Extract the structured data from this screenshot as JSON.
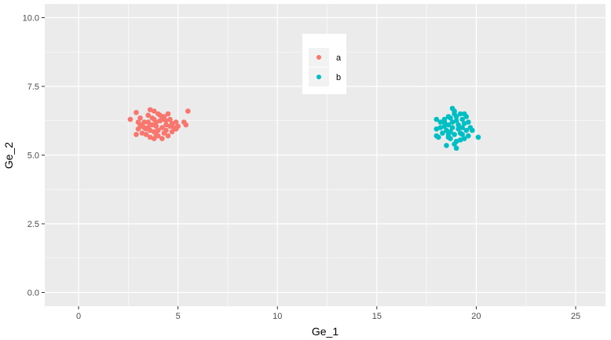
{
  "chart_data": {
    "type": "scatter",
    "title": "",
    "xlabel": "Ge_1",
    "ylabel": "Ge_2",
    "xlim": [
      -1.7,
      26.5
    ],
    "ylim": [
      -0.5,
      10.5
    ],
    "xticks": [
      0,
      5,
      10,
      15,
      20,
      25
    ],
    "xtick_labels": [
      "0",
      "5",
      "10",
      "15",
      "20",
      "25"
    ],
    "yticks": [
      0.0,
      2.5,
      5.0,
      7.5,
      10.0
    ],
    "ytick_labels": [
      "0.0",
      "2.5",
      "5.0",
      "7.5",
      "10.0"
    ],
    "grid": true,
    "legend_position": "top-center, inside plot",
    "colors": {
      "a": "#F8766D",
      "b": "#00BFC4",
      "panel": "#EBEBEB",
      "grid": "#FFFFFF"
    },
    "series": [
      {
        "name": "a",
        "color": "#F8766D",
        "points": [
          [
            2.9,
            6.55
          ],
          [
            3.6,
            6.65
          ],
          [
            3.8,
            6.6
          ],
          [
            3.1,
            6.35
          ],
          [
            2.6,
            6.3
          ],
          [
            3.3,
            6.2
          ],
          [
            3.5,
            6.45
          ],
          [
            4.0,
            6.5
          ],
          [
            4.3,
            6.4
          ],
          [
            4.6,
            6.3
          ],
          [
            5.5,
            6.6
          ],
          [
            5.3,
            6.2
          ],
          [
            5.4,
            6.1
          ],
          [
            4.9,
            6.2
          ],
          [
            5.0,
            6.05
          ],
          [
            4.8,
            6.0
          ],
          [
            4.7,
            5.85
          ],
          [
            4.5,
            5.7
          ],
          [
            4.2,
            5.6
          ],
          [
            3.8,
            5.6
          ],
          [
            3.6,
            5.65
          ],
          [
            3.4,
            5.75
          ],
          [
            3.2,
            5.8
          ],
          [
            2.9,
            5.75
          ],
          [
            3.0,
            5.95
          ],
          [
            3.1,
            6.1
          ],
          [
            3.3,
            6.0
          ],
          [
            3.5,
            6.0
          ],
          [
            3.7,
            6.1
          ],
          [
            3.9,
            6.2
          ],
          [
            4.1,
            6.25
          ],
          [
            4.4,
            6.1
          ],
          [
            4.2,
            6.0
          ],
          [
            4.0,
            5.9
          ],
          [
            3.8,
            5.85
          ],
          [
            3.6,
            5.9
          ],
          [
            3.4,
            5.95
          ],
          [
            3.7,
            6.35
          ],
          [
            4.1,
            6.45
          ],
          [
            4.4,
            6.25
          ],
          [
            4.6,
            6.05
          ],
          [
            4.3,
            5.8
          ],
          [
            4.0,
            5.7
          ],
          [
            3.9,
            6.05
          ],
          [
            3.5,
            6.2
          ],
          [
            4.5,
            6.5
          ],
          [
            3.2,
            6.05
          ],
          [
            3.9,
            5.75
          ],
          [
            4.2,
            6.3
          ],
          [
            4.7,
            6.15
          ],
          [
            3.0,
            6.2
          ],
          [
            4.4,
            5.9
          ],
          [
            3.6,
            6.1
          ],
          [
            3.8,
            6.3
          ],
          [
            4.9,
            5.95
          ]
        ]
      },
      {
        "name": "b",
        "color": "#00BFC4",
        "points": [
          [
            18.8,
            6.7
          ],
          [
            18.9,
            6.6
          ],
          [
            19.2,
            6.5
          ],
          [
            19.4,
            6.5
          ],
          [
            18.6,
            6.4
          ],
          [
            18.0,
            6.3
          ],
          [
            18.4,
            6.3
          ],
          [
            18.7,
            6.35
          ],
          [
            19.0,
            6.4
          ],
          [
            19.3,
            6.3
          ],
          [
            19.6,
            6.2
          ],
          [
            19.7,
            6.0
          ],
          [
            19.8,
            5.9
          ],
          [
            20.1,
            5.65
          ],
          [
            19.6,
            5.7
          ],
          [
            19.4,
            5.6
          ],
          [
            19.2,
            5.55
          ],
          [
            19.0,
            5.5
          ],
          [
            18.9,
            5.4
          ],
          [
            18.5,
            5.35
          ],
          [
            19.0,
            5.25
          ],
          [
            18.1,
            5.65
          ],
          [
            18.0,
            5.7
          ],
          [
            18.0,
            5.95
          ],
          [
            18.2,
            6.0
          ],
          [
            18.4,
            6.05
          ],
          [
            18.6,
            6.1
          ],
          [
            18.8,
            6.2
          ],
          [
            19.1,
            6.1
          ],
          [
            19.3,
            6.0
          ],
          [
            19.5,
            5.9
          ],
          [
            19.2,
            5.8
          ],
          [
            18.9,
            5.75
          ],
          [
            18.7,
            5.85
          ],
          [
            18.5,
            5.9
          ],
          [
            18.3,
            5.8
          ],
          [
            18.6,
            5.65
          ],
          [
            19.1,
            5.95
          ],
          [
            18.8,
            6.0
          ],
          [
            19.0,
            6.25
          ],
          [
            18.4,
            6.2
          ],
          [
            19.4,
            6.15
          ],
          [
            18.7,
            5.6
          ],
          [
            19.3,
            5.75
          ],
          [
            18.2,
            6.2
          ],
          [
            18.9,
            6.5
          ],
          [
            19.5,
            6.4
          ],
          [
            18.6,
            5.75
          ]
        ]
      }
    ]
  }
}
